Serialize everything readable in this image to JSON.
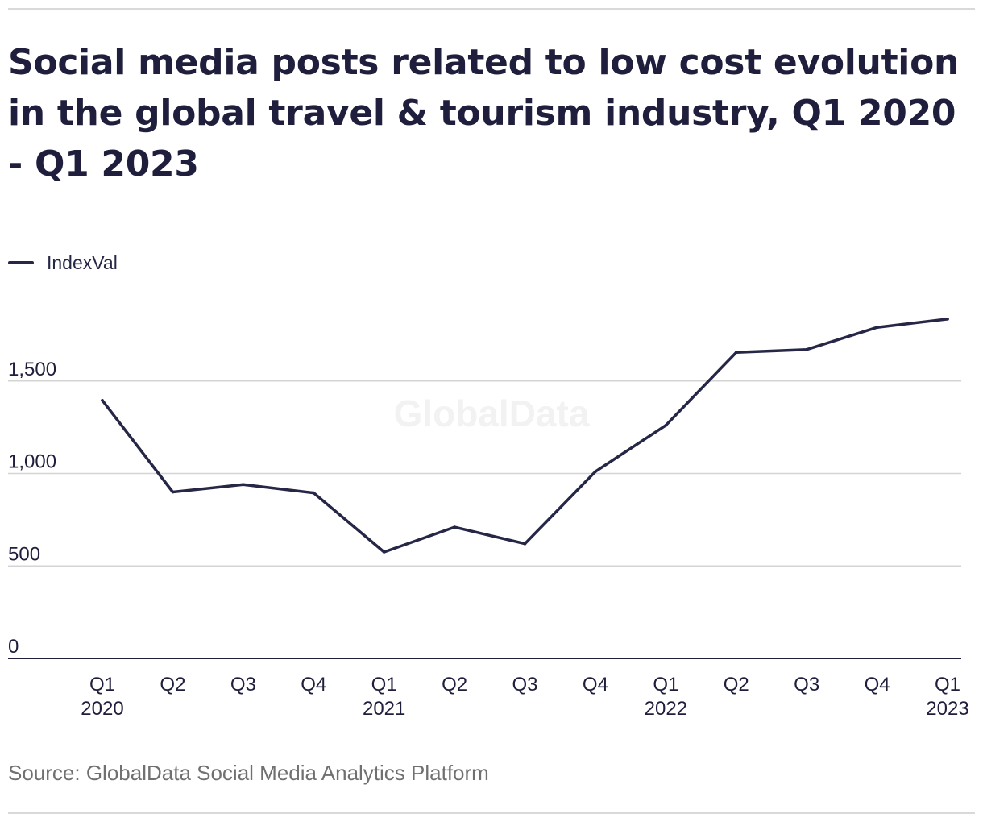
{
  "title": "Social media posts related to low cost evolution in the global travel & tourism industry, Q1 2020 - Q1 2023",
  "source": "Source: GlobalData Social Media Analytics Platform",
  "watermark": "GlobalData",
  "colors": {
    "line": "#262646",
    "axis": "#1f1f3d",
    "grid": "#d4d4d4",
    "text": "#1f1f3d",
    "source_text": "#707070"
  },
  "chart_data": {
    "type": "line",
    "categories": [
      [
        "Q1",
        "2020"
      ],
      [
        "Q2"
      ],
      [
        "Q3"
      ],
      [
        "Q4"
      ],
      [
        "Q1",
        "2021"
      ],
      [
        "Q2"
      ],
      [
        "Q3"
      ],
      [
        "Q4"
      ],
      [
        "Q1",
        "2022"
      ],
      [
        "Q2"
      ],
      [
        "Q3"
      ],
      [
        "Q4"
      ],
      [
        "Q1",
        "2023"
      ]
    ],
    "series": [
      {
        "name": "IndexVal",
        "values": [
          1395,
          900,
          940,
          895,
          575,
          710,
          620,
          1010,
          1260,
          1655,
          1670,
          1790,
          1835
        ]
      }
    ],
    "yticks": [
      0,
      500,
      1000,
      1500
    ],
    "ytick_labels": [
      "0",
      "500",
      "1,000",
      "1,500"
    ],
    "ylim": [
      0,
      2000
    ],
    "grid": true,
    "legend": "top-left"
  }
}
